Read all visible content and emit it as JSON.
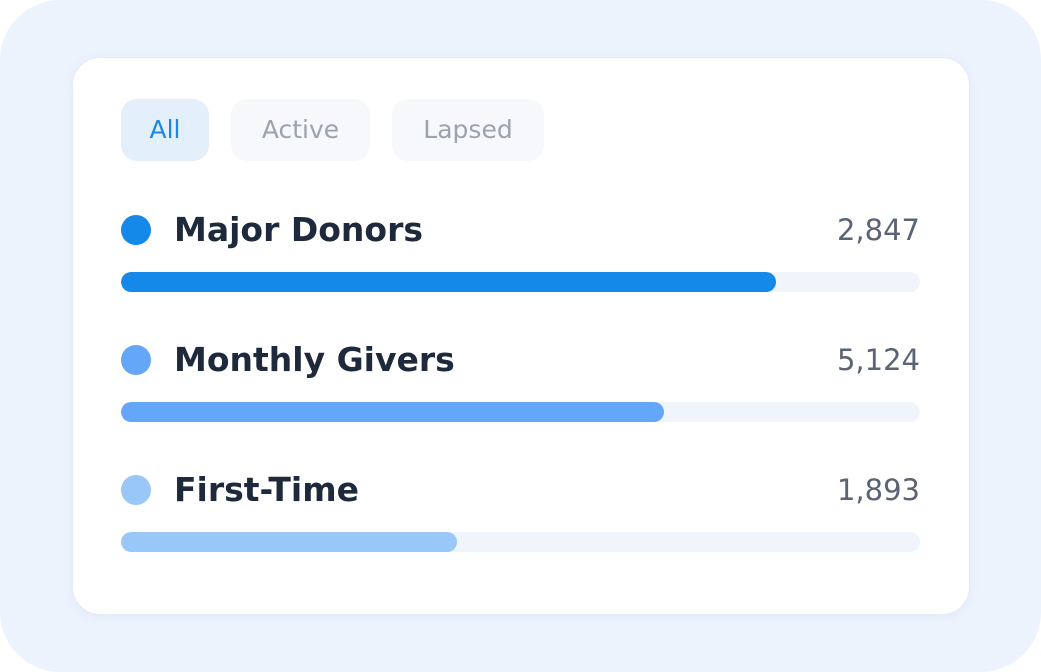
{
  "tabs": [
    {
      "label": "All",
      "selected": true
    },
    {
      "label": "Active",
      "selected": false
    },
    {
      "label": "Lapsed",
      "selected": false
    }
  ],
  "segments": [
    {
      "name": "Major Donors",
      "value": "2,847",
      "fill": 82,
      "color": "#1589ea"
    },
    {
      "name": "Monthly Givers",
      "value": "5,124",
      "fill": 68,
      "color": "#64a6f7"
    },
    {
      "name": "First-Time",
      "value": "1,893",
      "fill": 42,
      "color": "#98c7f8"
    }
  ]
}
